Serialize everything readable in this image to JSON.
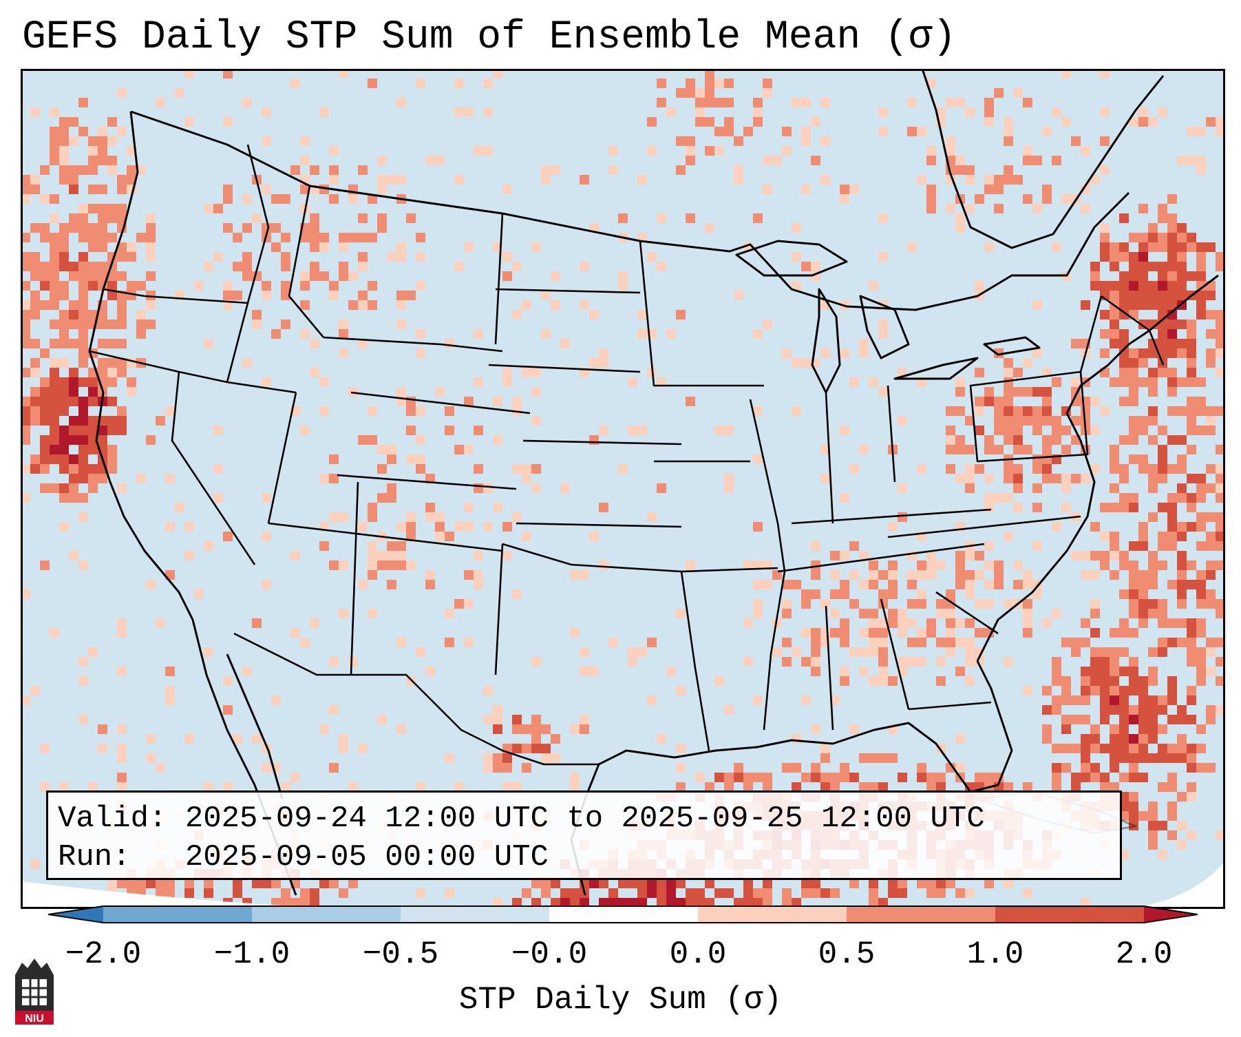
{
  "title": "GEFS Daily STP Sum of Ensemble Mean (σ)",
  "info": {
    "valid_label": "Valid:",
    "valid_value": "2025-09-24 12:00 UTC to 2025-09-25 12:00 UTC",
    "run_label": "Run:",
    "run_value": "2025-09-05 00:00 UTC"
  },
  "colorbar": {
    "label": "STP Daily Sum (σ)",
    "ticks": [
      "−2.0",
      "−1.0",
      "−0.5",
      "−0.0",
      "0.0",
      "0.5",
      "1.0",
      "2.0"
    ],
    "colors": [
      "#2f78b8",
      "#6fa9d3",
      "#a9cde6",
      "#d1e5f0",
      "#fdfdfd",
      "#fbd1bd",
      "#ef8c72",
      "#d5523f",
      "#b2182b"
    ]
  },
  "map": {
    "background_color": "#d1e5f0",
    "projection": "Lambert Conformal (CONUS)",
    "anomaly_regions": [
      {
        "name": "pacific-northwest-coast",
        "level": "moderate"
      },
      {
        "name": "northern-california-coast",
        "level": "high"
      },
      {
        "name": "new-england",
        "level": "high"
      },
      {
        "name": "gulf-of-mexico-south",
        "level": "high"
      },
      {
        "name": "western-atlantic",
        "level": "moderate"
      },
      {
        "name": "southeast-us",
        "level": "low"
      },
      {
        "name": "northern-rockies",
        "level": "low"
      }
    ]
  },
  "logo": {
    "text": "NIU"
  }
}
